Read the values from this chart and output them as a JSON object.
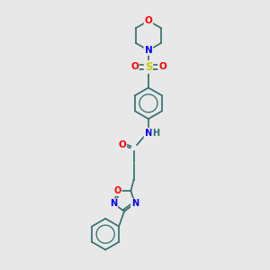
{
  "bg_color": "#e8e8e8",
  "bond_color": "#2d6e6e",
  "O_color": "#ff0000",
  "N_color": "#0000ff",
  "S_color": "#cccc00",
  "fs": 7.5,
  "lw": 1.2,
  "figsize": [
    3.0,
    3.0
  ],
  "dpi": 100,
  "xlim": [
    0,
    10
  ],
  "ylim": [
    0,
    10
  ]
}
